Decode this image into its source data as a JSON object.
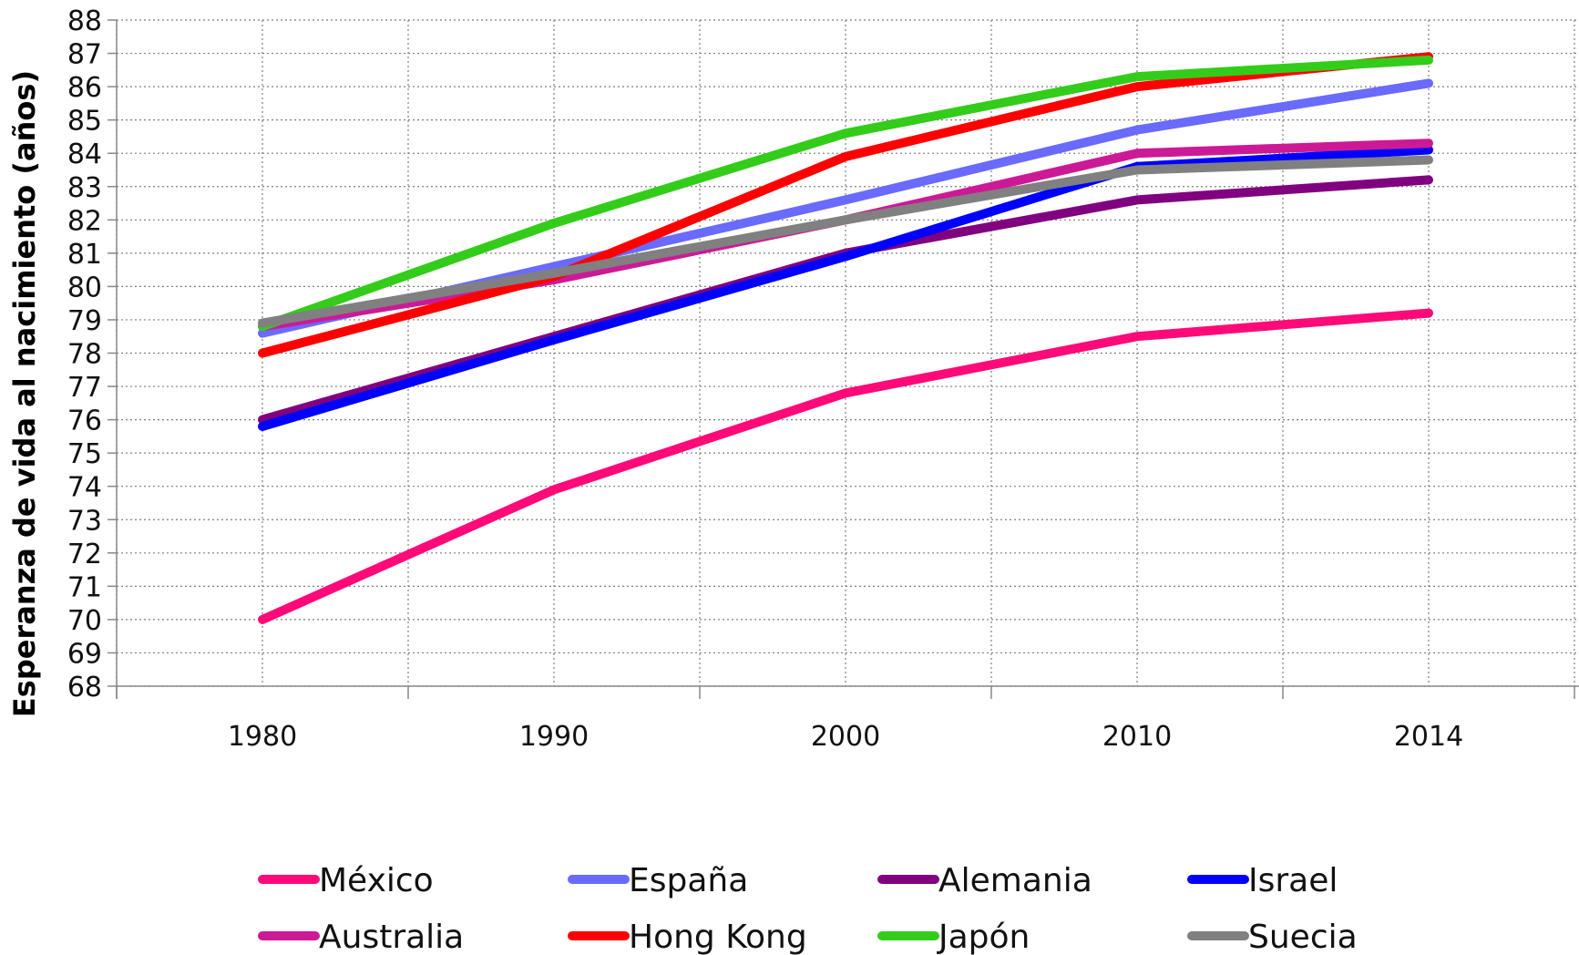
{
  "chart_data": {
    "type": "line",
    "title": "",
    "xlabel": "",
    "ylabel": "Esperanza de vida al nacimiento (años)",
    "categories": [
      "1980",
      "1990",
      "2000",
      "2010",
      "2014"
    ],
    "ylim": [
      68,
      88
    ],
    "yticks": [
      68,
      69,
      70,
      71,
      72,
      73,
      74,
      75,
      76,
      77,
      78,
      79,
      80,
      81,
      82,
      83,
      84,
      85,
      86,
      87,
      88
    ],
    "grid": true,
    "legend_position": "bottom",
    "series": [
      {
        "name": "México",
        "color": "#ff0a78",
        "values": [
          70.0,
          73.9,
          76.8,
          78.5,
          79.2
        ]
      },
      {
        "name": "España",
        "color": "#6a6aff",
        "values": [
          78.6,
          80.6,
          82.6,
          84.7,
          86.1
        ]
      },
      {
        "name": "Alemania",
        "color": "#800080",
        "values": [
          76.0,
          78.5,
          81.0,
          82.6,
          83.2
        ]
      },
      {
        "name": "Israel",
        "color": "#0000ff",
        "values": [
          75.8,
          78.4,
          80.9,
          83.6,
          84.1
        ]
      },
      {
        "name": "Australia",
        "color": "#cc1a96",
        "values": [
          78.8,
          80.2,
          82.0,
          84.0,
          84.3
        ]
      },
      {
        "name": "Hong Kong",
        "color": "#ff0000",
        "values": [
          78.0,
          80.3,
          83.9,
          86.0,
          86.9
        ]
      },
      {
        "name": "Japón",
        "color": "#33cc1a",
        "values": [
          78.8,
          81.9,
          84.6,
          86.3,
          86.8
        ]
      },
      {
        "name": "Suecia",
        "color": "#808080",
        "values": [
          78.9,
          80.4,
          82.0,
          83.5,
          83.8
        ]
      }
    ]
  }
}
